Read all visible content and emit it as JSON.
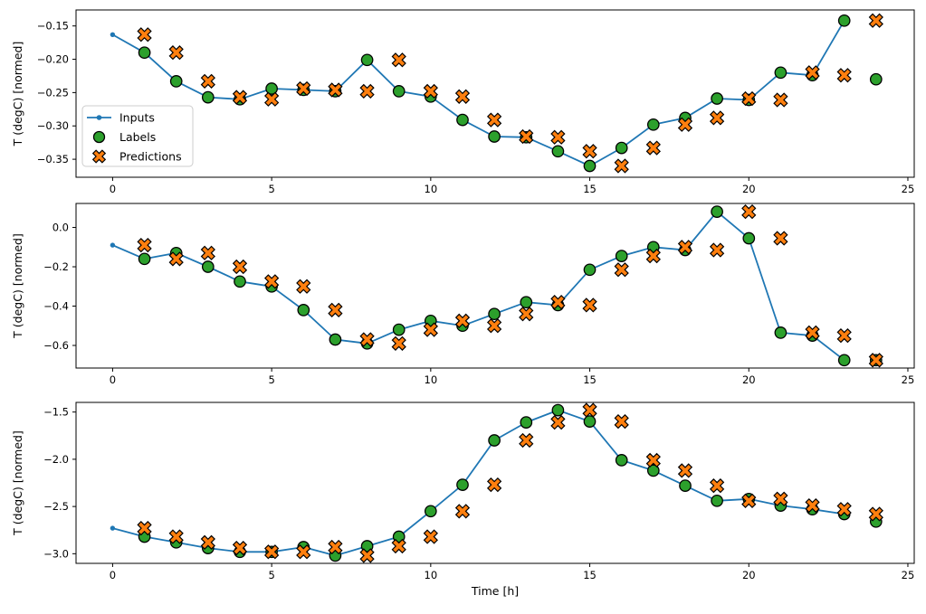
{
  "figure": {
    "background": "#ffffff",
    "legend": {
      "position": "center-left-of-first-subplot",
      "entries": [
        {
          "label": "Inputs",
          "marker": "line-with-dot",
          "color": "#1f77b4"
        },
        {
          "label": "Labels",
          "marker": "filled-circle",
          "color": "#2ca02c",
          "edge_color": "#000000"
        },
        {
          "label": "Predictions",
          "marker": "filled-x",
          "color": "#ff7f0e",
          "edge_color": "#000000"
        }
      ]
    }
  },
  "chart_data": [
    {
      "type": "line",
      "title": "",
      "xlabel": "",
      "ylabel": "T (degC) [normed]",
      "grid": false,
      "show_legend": true,
      "xlim": [
        -1.15,
        25.2
      ],
      "ylim": [
        -0.377,
        -0.126
      ],
      "xticks": [
        0,
        5,
        10,
        15,
        20,
        25
      ],
      "yticks": [
        -0.15,
        -0.2,
        -0.25,
        -0.3,
        -0.35
      ],
      "ytick_labels": [
        "−0.15",
        "−0.20",
        "−0.25",
        "−0.30",
        "−0.35"
      ],
      "series": [
        {
          "name": "Inputs",
          "style": "line-with-dot-markers",
          "color": "#1f77b4",
          "x": [
            0,
            1,
            2,
            3,
            4,
            5,
            6,
            7,
            8,
            9,
            10,
            11,
            12,
            13,
            14,
            15,
            16,
            17,
            18,
            19,
            20,
            21,
            22,
            23
          ],
          "y": [
            -0.163,
            -0.19,
            -0.233,
            -0.257,
            -0.26,
            -0.244,
            -0.246,
            -0.248,
            -0.201,
            -0.248,
            -0.256,
            -0.291,
            -0.316,
            -0.317,
            -0.338,
            -0.36,
            -0.333,
            -0.298,
            -0.288,
            -0.259,
            -0.261,
            -0.22,
            -0.224,
            -0.142
          ]
        },
        {
          "name": "Labels",
          "style": "scatter-circle",
          "color": "#2ca02c",
          "edge_color": "#000000",
          "x": [
            1,
            2,
            3,
            4,
            5,
            6,
            7,
            8,
            9,
            10,
            11,
            12,
            13,
            14,
            15,
            16,
            17,
            18,
            19,
            20,
            21,
            22,
            23,
            24
          ],
          "y": [
            -0.19,
            -0.233,
            -0.257,
            -0.26,
            -0.244,
            -0.246,
            -0.248,
            -0.201,
            -0.248,
            -0.256,
            -0.291,
            -0.316,
            -0.317,
            -0.338,
            -0.36,
            -0.333,
            -0.298,
            -0.288,
            -0.259,
            -0.261,
            -0.22,
            -0.224,
            -0.142,
            -0.23
          ]
        },
        {
          "name": "Predictions",
          "style": "scatter-x",
          "color": "#ff7f0e",
          "edge_color": "#000000",
          "x": [
            1,
            2,
            3,
            4,
            5,
            6,
            7,
            8,
            9,
            10,
            11,
            12,
            13,
            14,
            15,
            16,
            17,
            18,
            19,
            20,
            21,
            22,
            23,
            24
          ],
          "y": [
            -0.163,
            -0.19,
            -0.233,
            -0.257,
            -0.26,
            -0.244,
            -0.246,
            -0.248,
            -0.201,
            -0.248,
            -0.256,
            -0.291,
            -0.316,
            -0.317,
            -0.338,
            -0.36,
            -0.333,
            -0.298,
            -0.288,
            -0.259,
            -0.261,
            -0.22,
            -0.224,
            -0.142
          ]
        }
      ]
    },
    {
      "type": "line",
      "title": "",
      "xlabel": "",
      "ylabel": "T (degC) [normed]",
      "grid": false,
      "show_legend": false,
      "xlim": [
        -1.15,
        25.2
      ],
      "ylim": [
        -0.715,
        0.122
      ],
      "xticks": [
        0,
        5,
        10,
        15,
        20,
        25
      ],
      "yticks": [
        0.0,
        -0.2,
        -0.4,
        -0.6
      ],
      "ytick_labels": [
        "0.0",
        "−0.2",
        "−0.4",
        "−0.6"
      ],
      "series": [
        {
          "name": "Inputs",
          "style": "line-with-dot-markers",
          "color": "#1f77b4",
          "x": [
            0,
            1,
            2,
            3,
            4,
            5,
            6,
            7,
            8,
            9,
            10,
            11,
            12,
            13,
            14,
            15,
            16,
            17,
            18,
            19,
            20,
            21,
            22,
            23
          ],
          "y": [
            -0.09,
            -0.16,
            -0.13,
            -0.2,
            -0.275,
            -0.3,
            -0.42,
            -0.57,
            -0.59,
            -0.52,
            -0.475,
            -0.5,
            -0.44,
            -0.38,
            -0.395,
            -0.215,
            -0.145,
            -0.1,
            -0.115,
            0.08,
            -0.055,
            -0.535,
            -0.55,
            -0.675
          ]
        },
        {
          "name": "Labels",
          "style": "scatter-circle",
          "color": "#2ca02c",
          "edge_color": "#000000",
          "x": [
            1,
            2,
            3,
            4,
            5,
            6,
            7,
            8,
            9,
            10,
            11,
            12,
            13,
            14,
            15,
            16,
            17,
            18,
            19,
            20,
            21,
            22,
            23,
            24
          ],
          "y": [
            -0.16,
            -0.13,
            -0.2,
            -0.275,
            -0.3,
            -0.42,
            -0.57,
            -0.59,
            -0.52,
            -0.475,
            -0.5,
            -0.44,
            -0.38,
            -0.395,
            -0.215,
            -0.145,
            -0.1,
            -0.115,
            0.08,
            -0.055,
            -0.535,
            -0.55,
            -0.675,
            -0.675
          ]
        },
        {
          "name": "Predictions",
          "style": "scatter-x",
          "color": "#ff7f0e",
          "edge_color": "#000000",
          "x": [
            1,
            2,
            3,
            4,
            5,
            6,
            7,
            8,
            9,
            10,
            11,
            12,
            13,
            14,
            15,
            16,
            17,
            18,
            19,
            20,
            21,
            22,
            23,
            24
          ],
          "y": [
            -0.09,
            -0.16,
            -0.13,
            -0.2,
            -0.275,
            -0.3,
            -0.42,
            -0.57,
            -0.59,
            -0.52,
            -0.475,
            -0.5,
            -0.44,
            -0.38,
            -0.395,
            -0.215,
            -0.145,
            -0.1,
            -0.115,
            0.08,
            -0.055,
            -0.535,
            -0.55,
            -0.675
          ]
        }
      ]
    },
    {
      "type": "line",
      "title": "",
      "xlabel": "Time [h]",
      "ylabel": "T (degC) [normed]",
      "grid": false,
      "show_legend": false,
      "xlim": [
        -1.15,
        25.2
      ],
      "ylim": [
        -3.102,
        -1.398
      ],
      "xticks": [
        0,
        5,
        10,
        15,
        20,
        25
      ],
      "yticks": [
        -1.5,
        -2.0,
        -2.5,
        -3.0
      ],
      "ytick_labels": [
        "−1.5",
        "−2.0",
        "−2.5",
        "−3.0"
      ],
      "series": [
        {
          "name": "Inputs",
          "style": "line-with-dot-markers",
          "color": "#1f77b4",
          "x": [
            0,
            1,
            2,
            3,
            4,
            5,
            6,
            7,
            8,
            9,
            10,
            11,
            12,
            13,
            14,
            15,
            16,
            17,
            18,
            19,
            20,
            21,
            22,
            23
          ],
          "y": [
            -2.73,
            -2.82,
            -2.88,
            -2.94,
            -2.98,
            -2.98,
            -2.93,
            -3.02,
            -2.92,
            -2.82,
            -2.55,
            -2.27,
            -1.8,
            -1.61,
            -1.48,
            -1.6,
            -2.01,
            -2.12,
            -2.28,
            -2.44,
            -2.42,
            -2.49,
            -2.53,
            -2.58
          ]
        },
        {
          "name": "Labels",
          "style": "scatter-circle",
          "color": "#2ca02c",
          "edge_color": "#000000",
          "x": [
            1,
            2,
            3,
            4,
            5,
            6,
            7,
            8,
            9,
            10,
            11,
            12,
            13,
            14,
            15,
            16,
            17,
            18,
            19,
            20,
            21,
            22,
            23,
            24
          ],
          "y": [
            -2.82,
            -2.88,
            -2.94,
            -2.98,
            -2.98,
            -2.93,
            -3.02,
            -2.92,
            -2.82,
            -2.55,
            -2.27,
            -1.8,
            -1.61,
            -1.48,
            -1.6,
            -2.01,
            -2.12,
            -2.28,
            -2.44,
            -2.42,
            -2.49,
            -2.53,
            -2.58,
            -2.66
          ]
        },
        {
          "name": "Predictions",
          "style": "scatter-x",
          "color": "#ff7f0e",
          "edge_color": "#000000",
          "x": [
            1,
            2,
            3,
            4,
            5,
            6,
            7,
            8,
            9,
            10,
            11,
            12,
            13,
            14,
            15,
            16,
            17,
            18,
            19,
            20,
            21,
            22,
            23,
            24
          ],
          "y": [
            -2.73,
            -2.82,
            -2.88,
            -2.94,
            -2.98,
            -2.98,
            -2.93,
            -3.02,
            -2.92,
            -2.82,
            -2.55,
            -2.27,
            -1.8,
            -1.61,
            -1.48,
            -1.6,
            -2.01,
            -2.12,
            -2.28,
            -2.44,
            -2.42,
            -2.49,
            -2.53,
            -2.58
          ]
        }
      ]
    }
  ]
}
